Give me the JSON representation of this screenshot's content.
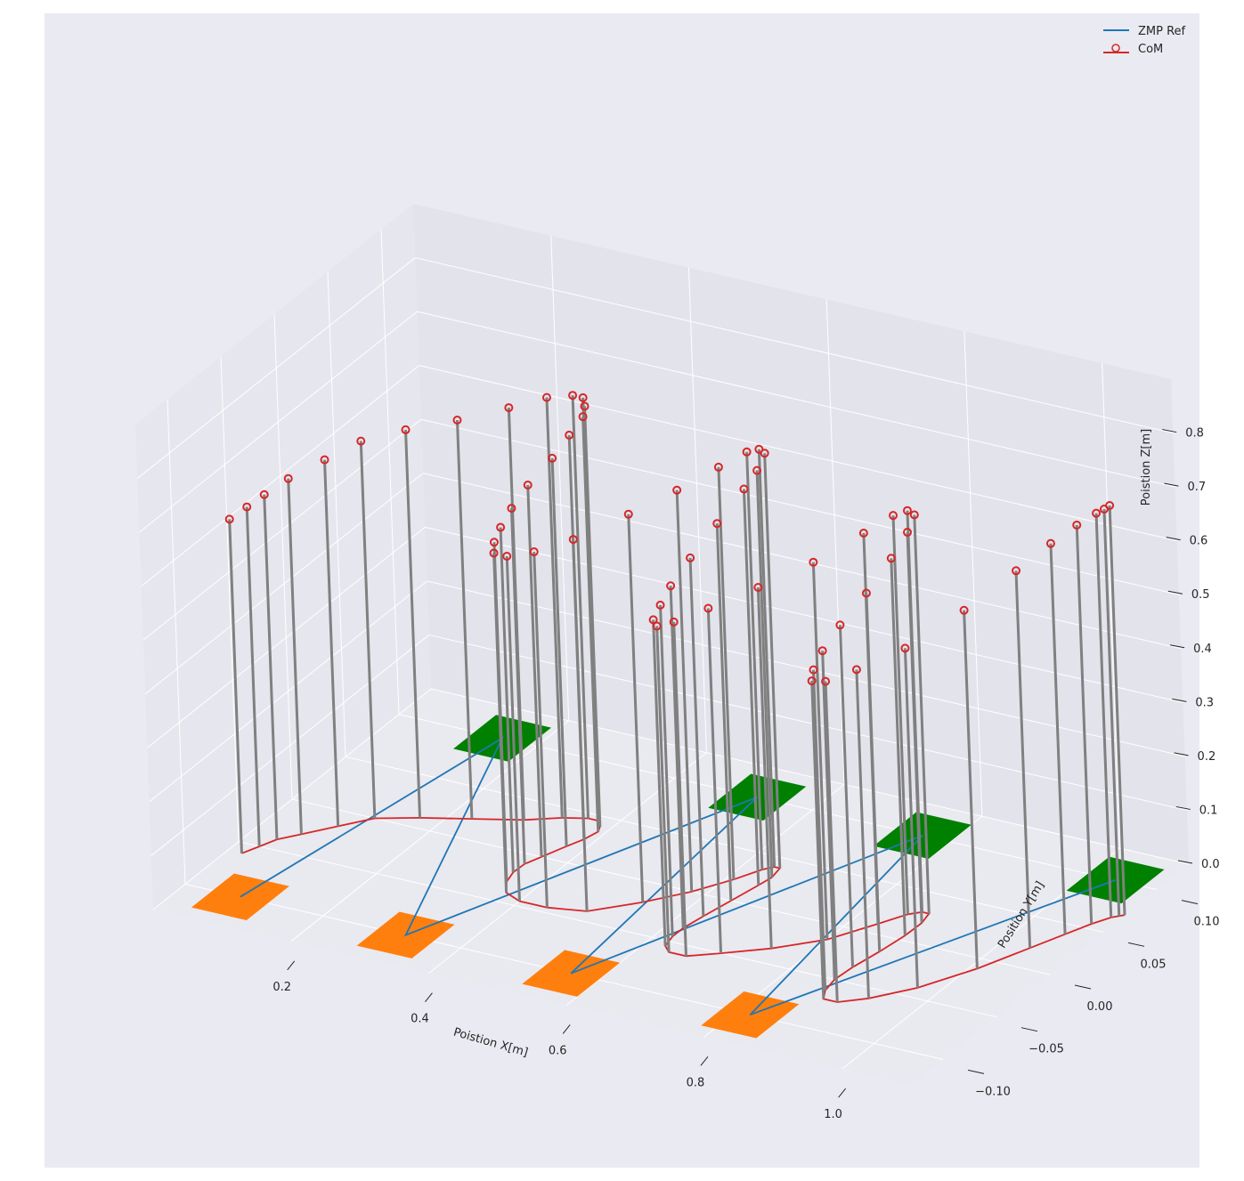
{
  "chart_data": {
    "type": "line3d",
    "xlabel": "Poistion X[m]",
    "ylabel": "Position Y[m]",
    "zlabel": "Poistion Z[m]",
    "x_ticks": [
      "0.2",
      "0.4",
      "0.6",
      "0.8",
      "1.0"
    ],
    "y_ticks": [
      "0.10",
      "0.05",
      "0.00",
      "−0.05",
      "−0.10"
    ],
    "z_ticks": [
      "0.0",
      "0.1",
      "0.2",
      "0.3",
      "0.4",
      "0.5",
      "0.6",
      "0.7",
      "0.8"
    ],
    "xlim": [
      0.0,
      1.1
    ],
    "ylim": [
      -0.13,
      0.13
    ],
    "zlim": [
      0.0,
      0.9
    ],
    "grid": true,
    "legend_position": "top-right",
    "series": [
      {
        "name": "ZMP Ref",
        "color": "#1f77b4",
        "points": [
          [
            0.08,
            -0.1,
            0
          ],
          [
            0.15,
            0.1,
            0
          ],
          [
            0.32,
            -0.1,
            0
          ],
          [
            0.52,
            0.1,
            0
          ],
          [
            0.56,
            -0.1,
            0
          ],
          [
            0.76,
            0.1,
            0
          ],
          [
            0.82,
            -0.1,
            0
          ],
          [
            1.04,
            0.1,
            0
          ]
        ]
      },
      {
        "name": "CoM",
        "color": "#d62728",
        "marker": "o",
        "points": [
          [
            0.02,
            -0.06,
            0.62
          ],
          [
            0.03,
            -0.05,
            0.63
          ],
          [
            0.04,
            -0.04,
            0.64
          ],
          [
            0.06,
            -0.03,
            0.66
          ],
          [
            0.09,
            -0.015,
            0.68
          ],
          [
            0.12,
            0,
            0.7
          ],
          [
            0.17,
            0.01,
            0.72
          ],
          [
            0.23,
            0.02,
            0.74
          ],
          [
            0.29,
            0.03,
            0.765
          ],
          [
            0.33,
            0.04,
            0.78
          ],
          [
            0.36,
            0.045,
            0.785
          ],
          [
            0.375,
            0.045,
            0.785
          ],
          [
            0.385,
            0.04,
            0.78
          ],
          [
            0.39,
            0.035,
            0.77
          ],
          [
            0.385,
            0.025,
            0.75
          ],
          [
            0.375,
            0.015,
            0.72
          ],
          [
            0.362,
            0.0,
            0.69
          ],
          [
            0.353,
            -0.01,
            0.66
          ],
          [
            0.352,
            -0.02,
            0.64
          ],
          [
            0.358,
            -0.03,
            0.63
          ],
          [
            0.373,
            -0.04,
            0.63
          ],
          [
            0.4,
            -0.045,
            0.64
          ],
          [
            0.44,
            -0.045,
            0.66
          ],
          [
            0.49,
            -0.04,
            0.69
          ],
          [
            0.54,
            -0.02,
            0.72
          ],
          [
            0.58,
            0.0,
            0.745
          ],
          [
            0.61,
            0.02,
            0.765
          ],
          [
            0.628,
            0.035,
            0.775
          ],
          [
            0.638,
            0.04,
            0.775
          ],
          [
            0.646,
            0.04,
            0.77
          ],
          [
            0.65,
            0.03,
            0.755
          ],
          [
            0.646,
            0.02,
            0.735
          ],
          [
            0.637,
            0.0,
            0.7
          ],
          [
            0.628,
            -0.02,
            0.665
          ],
          [
            0.622,
            -0.035,
            0.635
          ],
          [
            0.622,
            -0.045,
            0.615
          ],
          [
            0.627,
            -0.055,
            0.605
          ],
          [
            0.64,
            -0.06,
            0.605
          ],
          [
            0.665,
            -0.06,
            0.62
          ],
          [
            0.7,
            -0.05,
            0.64
          ],
          [
            0.75,
            -0.035,
            0.67
          ],
          [
            0.8,
            -0.015,
            0.7
          ],
          [
            0.835,
            0.01,
            0.725
          ],
          [
            0.855,
            0.025,
            0.74
          ],
          [
            0.868,
            0.03,
            0.745
          ],
          [
            0.878,
            0.03,
            0.74
          ],
          [
            0.883,
            0.02,
            0.725
          ],
          [
            0.882,
            0.005,
            0.7
          ],
          [
            0.876,
            -0.015,
            0.665
          ],
          [
            0.868,
            -0.035,
            0.635
          ],
          [
            0.865,
            -0.05,
            0.61
          ],
          [
            0.87,
            -0.062,
            0.595
          ],
          [
            0.88,
            -0.07,
            0.59
          ],
          [
            0.9,
            -0.07,
            0.595
          ],
          [
            0.93,
            -0.06,
            0.61
          ],
          [
            0.97,
            -0.04,
            0.63
          ],
          [
            1.01,
            -0.01,
            0.665
          ],
          [
            1.04,
            0.02,
            0.7
          ],
          [
            1.06,
            0.04,
            0.725
          ],
          [
            1.075,
            0.055,
            0.74
          ],
          [
            1.088,
            0.065,
            0.75
          ],
          [
            1.095,
            0.068,
            0.755
          ],
          [
            1.1,
            0.07,
            0.76
          ]
        ]
      }
    ],
    "footprints": {
      "half_length": 0.04,
      "half_width": 0.02,
      "right": {
        "color": "#ff7f0e",
        "centers": [
          [
            0.08,
            -0.1
          ],
          [
            0.32,
            -0.1
          ],
          [
            0.56,
            -0.1
          ],
          [
            0.82,
            -0.1
          ]
        ]
      },
      "left": {
        "color": "#008000",
        "centers": [
          [
            0.15,
            0.1
          ],
          [
            0.52,
            0.1
          ],
          [
            0.76,
            0.1
          ],
          [
            1.04,
            0.1
          ]
        ]
      }
    },
    "colors": {
      "figure_bg": "#ffffff",
      "plot_bg": "#eaeaf2",
      "pane_back": "#e3e3ec",
      "pane_side": "#e6e6ee",
      "pane_floor": "#e9e9f0",
      "grid": "#ffffff",
      "pendulum": "#808080",
      "text": "#262626"
    }
  }
}
